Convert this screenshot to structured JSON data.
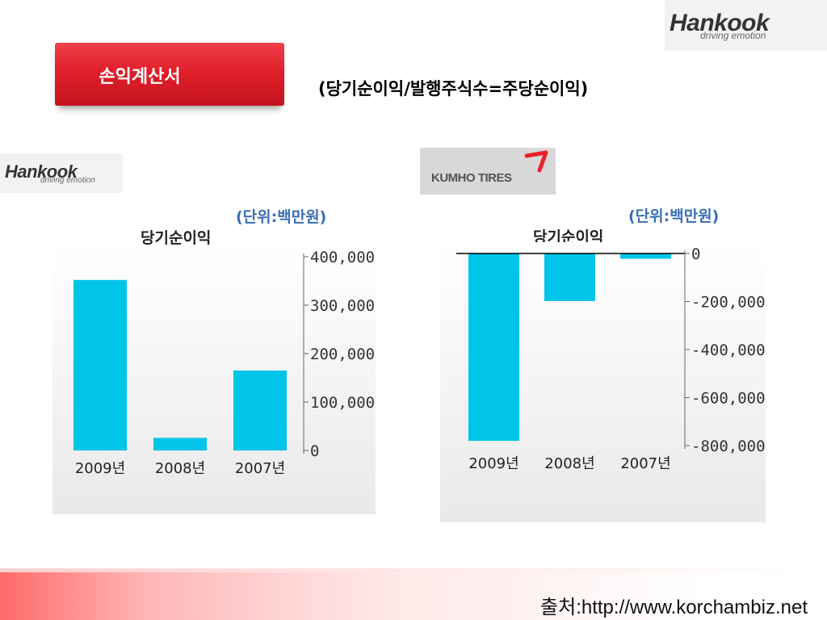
{
  "logos": {
    "hankook_word": "Hankook",
    "hankook_tagline": "driving emotion",
    "kumho_word": "KUMHO TIRES"
  },
  "header": {
    "ribbon_label": "손익계산서",
    "formula": "(당기순이익/발행주식수=주당순이익)"
  },
  "footer": {
    "source": "출처:http://www.korchambiz.net"
  },
  "colors": {
    "bar": "#00c4e8",
    "ribbon": "#e01f2b",
    "unit_text": "#3a6fb5"
  },
  "chart_data": [
    {
      "type": "bar",
      "company": "Hankook",
      "unit": "(단위:백만원)",
      "title": "당기순이익",
      "categories": [
        "2009년",
        "2008년",
        "2007년"
      ],
      "values": [
        352000,
        26000,
        165000
      ],
      "ylim": [
        0,
        400000
      ],
      "yticks": [
        0,
        100000,
        200000,
        300000,
        400000
      ],
      "ytick_labels": [
        "0",
        "100,000",
        "200,000",
        "300,000",
        "400,000"
      ],
      "axis_side": "right",
      "grid": false,
      "legend": "none"
    },
    {
      "type": "bar",
      "company": "Kumho Tires",
      "unit": "(단위:백만원)",
      "title": "당기순이익",
      "categories": [
        "2009년",
        "2008년",
        "2007년"
      ],
      "values": [
        -780000,
        -198000,
        -22000
      ],
      "ylim": [
        -800000,
        0
      ],
      "yticks": [
        0,
        -200000,
        -400000,
        -600000,
        -800000
      ],
      "ytick_labels": [
        "0",
        "-200,000",
        "-400,000",
        "-600,000",
        "-800,000"
      ],
      "axis_side": "right",
      "grid": false,
      "legend": "none"
    }
  ]
}
